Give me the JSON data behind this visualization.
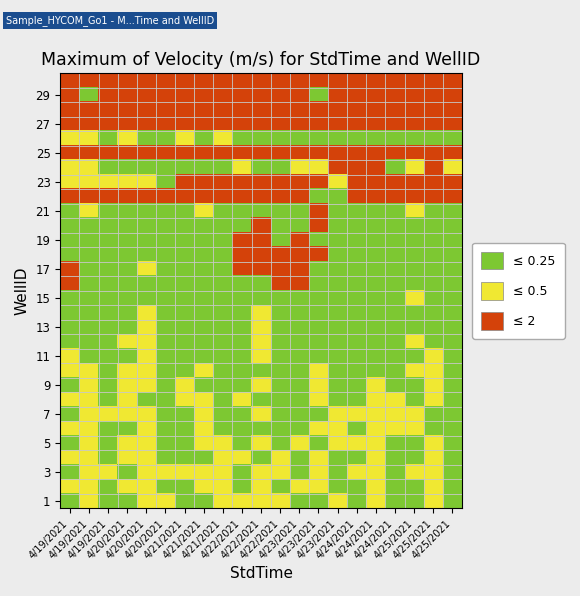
{
  "title": "Maximum of Velocity (m/s) for StdTime and WellID",
  "xlabel": "StdTime",
  "ylabel": "WellID",
  "x_labels": [
    "4/19/2021",
    "4/19/2021",
    "4/19/2021",
    "4/20/2021",
    "4/20/2021",
    "4/20/2021",
    "4/21/2021",
    "4/21/2021",
    "4/21/2021",
    "4/22/2021",
    "4/22/2021",
    "4/22/2021",
    "4/23/2021",
    "4/23/2021",
    "4/23/2021",
    "4/24/2021",
    "4/24/2021",
    "4/24/2021",
    "4/25/2021",
    "4/25/2021",
    "4/25/2021"
  ],
  "colors_map": [
    "#7dc832",
    "#f0e832",
    "#d4420a"
  ],
  "grid_color": "#c8c8c8",
  "legend_labels": [
    "≤ 0.25",
    "≤ 0.5",
    "≤ 2"
  ],
  "bg_color": "#ececec",
  "title_bar_color": "#1a4d8f",
  "matrix": [
    [
      0,
      1,
      0,
      0,
      1,
      1,
      0,
      0,
      1,
      1,
      1,
      1,
      0,
      0,
      1,
      0,
      1,
      0,
      0,
      1,
      0
    ],
    [
      1,
      1,
      0,
      1,
      1,
      0,
      0,
      1,
      1,
      0,
      1,
      0,
      1,
      1,
      0,
      0,
      1,
      0,
      0,
      1,
      0
    ],
    [
      0,
      1,
      1,
      0,
      1,
      1,
      1,
      1,
      1,
      0,
      1,
      1,
      0,
      1,
      0,
      1,
      1,
      0,
      1,
      1,
      0
    ],
    [
      1,
      1,
      0,
      1,
      1,
      0,
      0,
      0,
      1,
      1,
      0,
      1,
      0,
      1,
      0,
      0,
      1,
      0,
      0,
      1,
      0
    ],
    [
      0,
      1,
      0,
      1,
      1,
      0,
      0,
      1,
      1,
      0,
      1,
      0,
      1,
      0,
      1,
      1,
      1,
      0,
      0,
      1,
      0
    ],
    [
      1,
      1,
      0,
      0,
      1,
      0,
      0,
      1,
      0,
      0,
      0,
      0,
      0,
      1,
      1,
      0,
      1,
      1,
      1,
      0,
      0
    ],
    [
      0,
      1,
      1,
      1,
      1,
      0,
      0,
      1,
      0,
      0,
      1,
      0,
      0,
      0,
      1,
      1,
      1,
      1,
      1,
      0,
      0
    ],
    [
      1,
      1,
      0,
      1,
      0,
      0,
      1,
      1,
      0,
      1,
      0,
      0,
      0,
      1,
      0,
      0,
      1,
      1,
      0,
      1,
      0
    ],
    [
      0,
      1,
      0,
      1,
      1,
      0,
      1,
      0,
      0,
      0,
      1,
      0,
      0,
      1,
      0,
      0,
      1,
      0,
      0,
      1,
      0
    ],
    [
      1,
      1,
      0,
      1,
      1,
      0,
      0,
      1,
      0,
      0,
      0,
      0,
      0,
      1,
      0,
      0,
      0,
      0,
      1,
      1,
      0
    ],
    [
      1,
      0,
      0,
      0,
      1,
      0,
      0,
      0,
      0,
      0,
      1,
      0,
      0,
      0,
      0,
      0,
      0,
      0,
      0,
      1,
      0
    ],
    [
      0,
      0,
      0,
      1,
      1,
      0,
      0,
      0,
      0,
      0,
      1,
      0,
      0,
      0,
      0,
      0,
      0,
      0,
      1,
      0,
      0
    ],
    [
      0,
      0,
      0,
      0,
      1,
      0,
      0,
      0,
      0,
      0,
      1,
      0,
      0,
      0,
      0,
      0,
      0,
      0,
      0,
      0,
      0
    ],
    [
      0,
      0,
      0,
      0,
      1,
      0,
      0,
      0,
      0,
      0,
      1,
      0,
      0,
      0,
      0,
      0,
      0,
      0,
      0,
      0,
      0
    ],
    [
      0,
      0,
      0,
      0,
      0,
      0,
      0,
      0,
      0,
      0,
      0,
      0,
      0,
      0,
      0,
      0,
      0,
      0,
      1,
      0,
      0
    ],
    [
      2,
      0,
      0,
      0,
      0,
      0,
      0,
      0,
      0,
      0,
      0,
      2,
      2,
      0,
      0,
      0,
      0,
      0,
      0,
      0,
      0
    ],
    [
      2,
      0,
      0,
      0,
      1,
      0,
      0,
      0,
      0,
      2,
      2,
      2,
      2,
      0,
      0,
      0,
      0,
      0,
      0,
      0,
      0
    ],
    [
      0,
      0,
      0,
      0,
      0,
      0,
      0,
      0,
      0,
      2,
      2,
      2,
      2,
      2,
      0,
      0,
      0,
      0,
      0,
      0,
      0
    ],
    [
      0,
      0,
      0,
      0,
      0,
      0,
      0,
      0,
      0,
      2,
      2,
      0,
      2,
      0,
      0,
      0,
      0,
      0,
      0,
      0,
      0
    ],
    [
      0,
      0,
      0,
      0,
      0,
      0,
      0,
      0,
      0,
      0,
      2,
      0,
      0,
      2,
      0,
      0,
      0,
      0,
      0,
      0,
      0
    ],
    [
      0,
      1,
      0,
      0,
      0,
      0,
      0,
      1,
      0,
      0,
      0,
      0,
      0,
      2,
      0,
      0,
      0,
      0,
      1,
      0,
      0
    ],
    [
      2,
      2,
      2,
      2,
      2,
      2,
      2,
      2,
      2,
      2,
      2,
      2,
      2,
      0,
      0,
      2,
      2,
      2,
      2,
      2,
      2
    ],
    [
      1,
      1,
      1,
      1,
      1,
      0,
      2,
      2,
      2,
      2,
      2,
      2,
      2,
      2,
      1,
      2,
      2,
      2,
      2,
      2,
      2
    ],
    [
      1,
      1,
      0,
      0,
      0,
      0,
      0,
      0,
      0,
      1,
      0,
      0,
      1,
      1,
      2,
      2,
      2,
      0,
      1,
      2,
      1
    ],
    [
      2,
      2,
      2,
      2,
      2,
      2,
      2,
      2,
      2,
      2,
      2,
      2,
      2,
      2,
      2,
      2,
      2,
      2,
      2,
      2,
      2
    ],
    [
      1,
      1,
      0,
      1,
      0,
      0,
      1,
      0,
      1,
      0,
      0,
      0,
      0,
      0,
      0,
      0,
      0,
      0,
      0,
      0,
      0
    ],
    [
      2,
      2,
      2,
      2,
      2,
      2,
      2,
      2,
      2,
      2,
      2,
      2,
      2,
      2,
      2,
      2,
      2,
      2,
      2,
      2,
      2
    ],
    [
      2,
      2,
      2,
      2,
      2,
      2,
      2,
      2,
      2,
      2,
      2,
      2,
      2,
      2,
      2,
      2,
      2,
      2,
      2,
      2,
      2
    ],
    [
      2,
      0,
      2,
      2,
      2,
      2,
      2,
      2,
      2,
      2,
      2,
      2,
      2,
      0,
      2,
      2,
      2,
      2,
      2,
      2,
      2
    ],
    [
      2,
      2,
      2,
      2,
      2,
      2,
      2,
      2,
      2,
      2,
      2,
      2,
      2,
      2,
      2,
      2,
      2,
      2,
      2,
      2,
      2
    ]
  ]
}
